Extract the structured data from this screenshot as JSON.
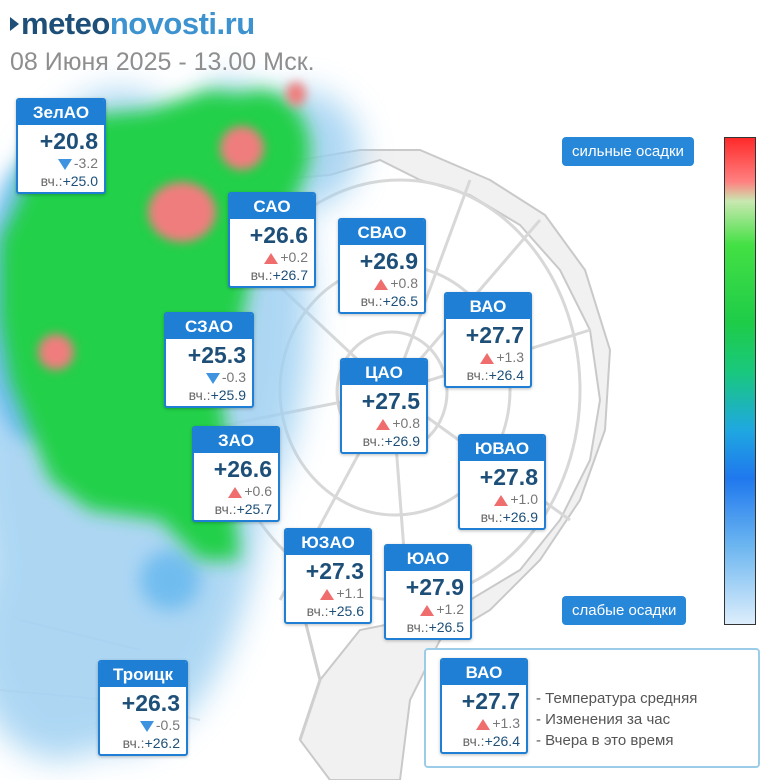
{
  "header": {
    "logo_bold": "meteo",
    "logo_light": "novosti.ru",
    "subtitle": "08 Июня 2025 - 13.00 Мск."
  },
  "labels": {
    "yesterday_prefix": "вч.:"
  },
  "districts": [
    {
      "key": "zelao",
      "name": "ЗелАО",
      "temp": "+20.8",
      "trend": "down",
      "delta": "-3.2",
      "yesterday": "+25.0"
    },
    {
      "key": "sao",
      "name": "САО",
      "temp": "+26.6",
      "trend": "up",
      "delta": "+0.2",
      "yesterday": "+26.7"
    },
    {
      "key": "svao",
      "name": "СВАО",
      "temp": "+26.9",
      "trend": "up",
      "delta": "+0.8",
      "yesterday": "+26.5"
    },
    {
      "key": "vao",
      "name": "ВАО",
      "temp": "+27.7",
      "trend": "up",
      "delta": "+1.3",
      "yesterday": "+26.4"
    },
    {
      "key": "szao",
      "name": "СЗАО",
      "temp": "+25.3",
      "trend": "down",
      "delta": "-0.3",
      "yesterday": "+25.9"
    },
    {
      "key": "cao",
      "name": "ЦАО",
      "temp": "+27.5",
      "trend": "up",
      "delta": "+0.8",
      "yesterday": "+26.9"
    },
    {
      "key": "zao",
      "name": "ЗАО",
      "temp": "+26.6",
      "trend": "up",
      "delta": "+0.6",
      "yesterday": "+25.7"
    },
    {
      "key": "yuvao",
      "name": "ЮВАО",
      "temp": "+27.8",
      "trend": "up",
      "delta": "+1.0",
      "yesterday": "+26.9"
    },
    {
      "key": "yuzao",
      "name": "ЮЗАО",
      "temp": "+27.3",
      "trend": "up",
      "delta": "+1.1",
      "yesterday": "+25.6"
    },
    {
      "key": "yuao",
      "name": "ЮАО",
      "temp": "+27.9",
      "trend": "up",
      "delta": "+1.2",
      "yesterday": "+26.5"
    },
    {
      "key": "troick",
      "name": "Троицк",
      "temp": "+26.3",
      "trend": "down",
      "delta": "-0.5",
      "yesterday": "+26.2"
    }
  ],
  "scale": {
    "top_label": "сильные осадки",
    "bottom_label": "слабые осадки",
    "colors": [
      "#ff2a2a",
      "#44e044",
      "#1f78ee",
      "#ddeefc"
    ]
  },
  "legend": {
    "example": {
      "name": "ВАО",
      "temp": "+27.7",
      "trend": "up",
      "delta": "+1.3",
      "yesterday": "+26.4"
    },
    "lines": [
      "- Температура средняя",
      "- Изменения за час",
      "- Вчера в это время"
    ]
  }
}
